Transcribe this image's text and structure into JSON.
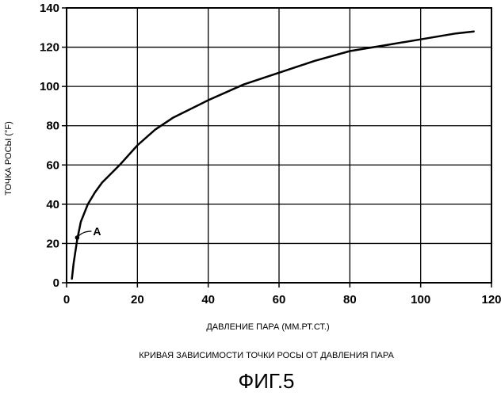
{
  "chart_data": {
    "type": "line",
    "xlabel": "ДАВЛЕНИЕ ПАРА (ММ.РТ.СТ.)",
    "ylabel": "ТОЧКА РОСЫ (°F)",
    "xlim": [
      0,
      120
    ],
    "ylim": [
      0,
      140
    ],
    "xticks": [
      0,
      20,
      40,
      60,
      80,
      100,
      120
    ],
    "yticks": [
      0,
      20,
      40,
      60,
      80,
      100,
      120,
      140
    ],
    "grid": true,
    "series": [
      {
        "x": [
          1.5,
          2,
          3,
          4,
          6,
          8,
          10,
          15,
          20,
          25,
          30,
          40,
          50,
          60,
          70,
          80,
          90,
          100,
          110,
          115
        ],
        "y": [
          2,
          10,
          22,
          31,
          40,
          46,
          51,
          60,
          70,
          78,
          84,
          93,
          101,
          107,
          113,
          118,
          121,
          124,
          127,
          128
        ]
      }
    ],
    "annotations": [
      {
        "text": "A",
        "x": 3,
        "y": 23
      }
    ]
  },
  "caption": "КРИВАЯ ЗАВИСИМОСТИ ТОЧКИ РОСЫ ОТ ДАВЛЕНИЯ ПАРА",
  "figure_number": "ФИГ.5"
}
